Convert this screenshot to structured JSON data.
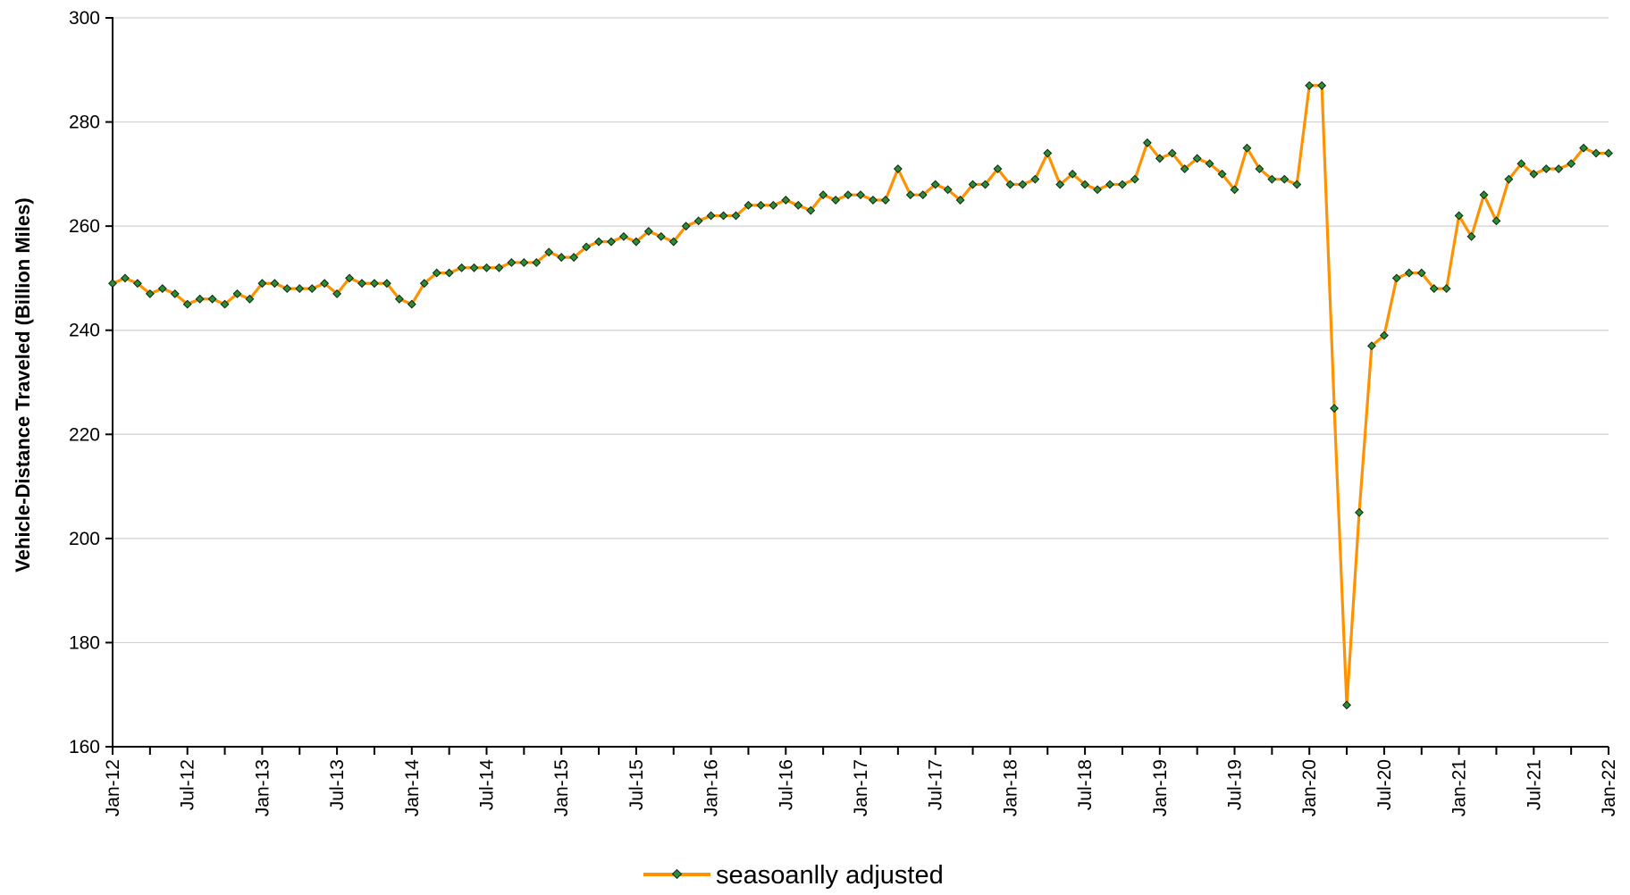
{
  "chart_data": {
    "type": "line",
    "title": "",
    "xlabel": "",
    "ylabel": "Vehicle-Distance Traveled (Billion Miles)",
    "ylim": [
      160,
      300
    ],
    "y_ticks": [
      160,
      180,
      200,
      220,
      240,
      260,
      280,
      300
    ],
    "x_tick_labels": [
      "Jan-12",
      "Jul-12",
      "Jan-13",
      "Jul-13",
      "Jan-14",
      "Jul-14",
      "Jan-15",
      "Jul-15",
      "Jan-16",
      "Jul-16",
      "Jan-17",
      "Jul-17",
      "Jan-18",
      "Jul-18",
      "Jan-19",
      "Jul-19",
      "Jan-20",
      "Jul-20",
      "Jan-21",
      "Jul-21",
      "Jan-22"
    ],
    "x_range": [
      "2012-01",
      "2022-01"
    ],
    "grid": "horizontal",
    "legend_position": "bottom-center",
    "colors": {
      "line": "#ff9200",
      "marker_fill": "#2e8b3a",
      "marker_stroke": "#0b2a0b",
      "grid": "#d0d0d0",
      "axis": "#000000"
    },
    "series": [
      {
        "name": "seasoanlly adjusted",
        "x_start": "2012-01",
        "frequency": "monthly",
        "values": [
          249,
          250,
          249,
          247,
          248,
          247,
          245,
          246,
          246,
          245,
          247,
          246,
          249,
          249,
          248,
          248,
          248,
          249,
          247,
          250,
          249,
          249,
          249,
          246,
          245,
          249,
          251,
          251,
          252,
          252,
          252,
          252,
          253,
          253,
          253,
          255,
          254,
          254,
          256,
          257,
          257,
          258,
          257,
          259,
          258,
          257,
          260,
          261,
          262,
          262,
          262,
          264,
          264,
          264,
          265,
          264,
          263,
          266,
          265,
          266,
          266,
          265,
          265,
          271,
          266,
          266,
          268,
          267,
          265,
          268,
          268,
          271,
          268,
          268,
          269,
          274,
          268,
          270,
          268,
          267,
          268,
          268,
          269,
          276,
          273,
          274,
          271,
          273,
          272,
          270,
          267,
          275,
          271,
          269,
          269,
          268,
          287,
          287,
          225,
          168,
          205,
          237,
          239,
          250,
          251,
          251,
          248,
          248,
          262,
          258,
          266,
          261,
          269,
          272,
          270,
          271,
          271,
          272,
          275,
          274,
          274
        ]
      }
    ]
  }
}
